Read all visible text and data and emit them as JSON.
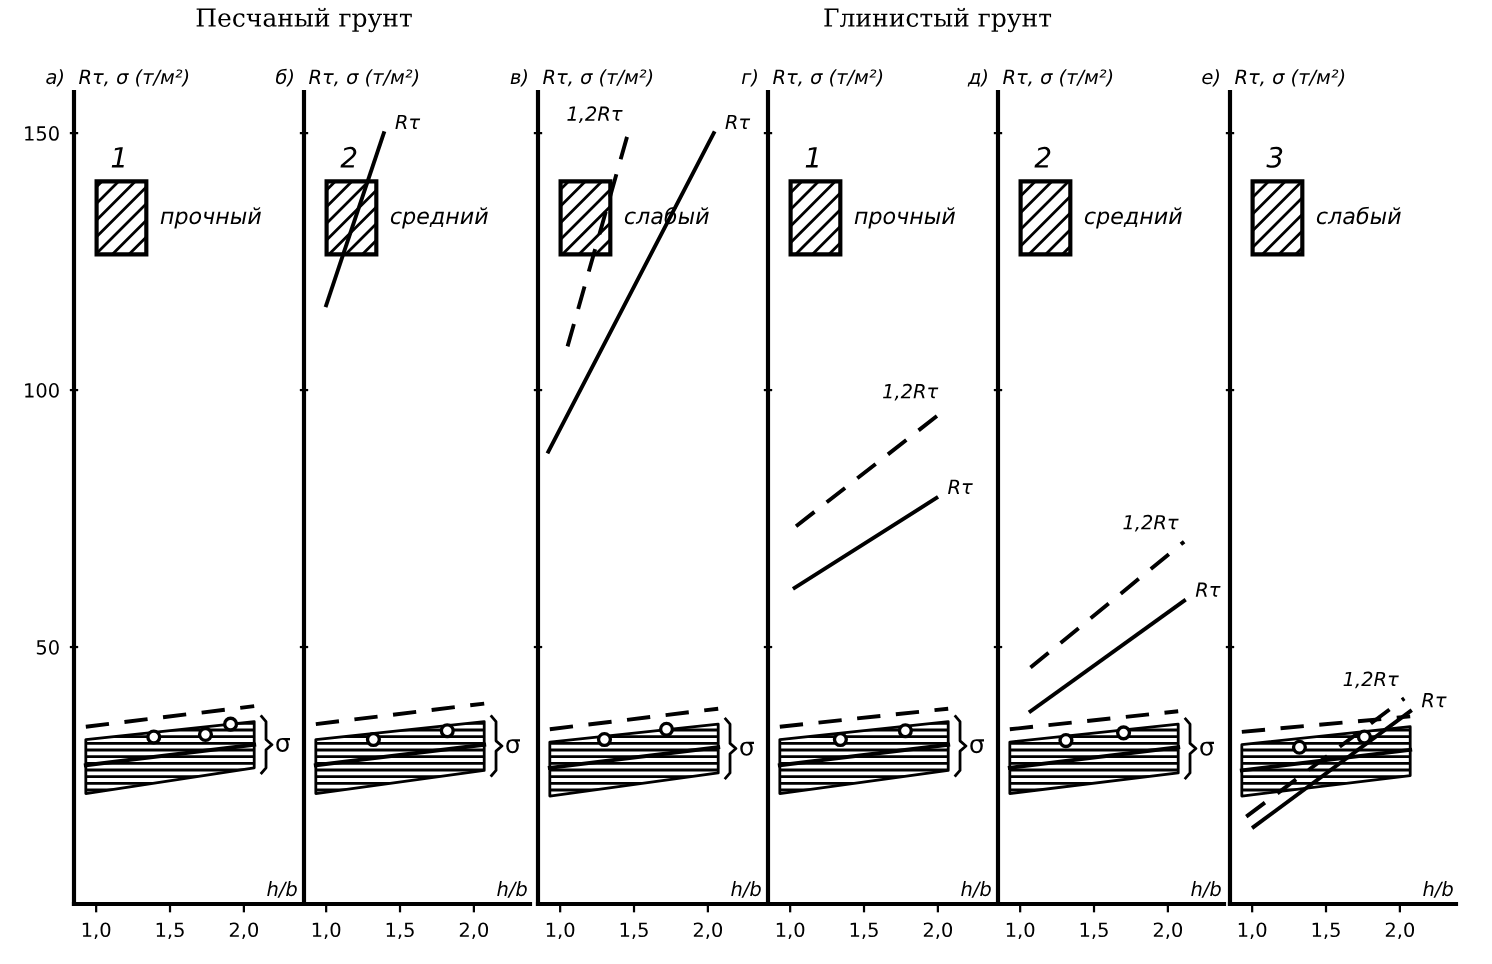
{
  "chart_data": [
    {
      "type": "line",
      "ylabel": "Rτ, σ (т/м²)",
      "xlabel": "h/b",
      "xlim": [
        0.85,
        2.38
      ],
      "ylim": [
        0,
        158
      ],
      "xticks": [
        {
          "value": 1.0,
          "label": "1,0"
        },
        {
          "value": 1.5,
          "label": "1,5"
        },
        {
          "value": 2.0,
          "label": "2,0"
        }
      ],
      "yticks": [
        50,
        100,
        150
      ],
      "annotations": [
        "а)",
        "1",
        "прочный"
      ],
      "series": [
        {
          "name": "σ",
          "type": "line",
          "color": "#000000",
          "x": [
            0.93,
            2.07
          ],
          "values": [
            27,
            31
          ],
          "lower": [
            21.5,
            26.5
          ],
          "upper": [
            32,
            35.5
          ]
        },
        {
          "type": "line",
          "line_style": "dashed",
          "color": "#000000",
          "x": [
            0.93,
            2.07
          ],
          "values": [
            34.5,
            38.5
          ]
        },
        {
          "type": "scatter",
          "marker": "circle",
          "color": "#000000",
          "x": [
            1.39,
            1.74,
            1.91
          ],
          "values": [
            32.5,
            33,
            35
          ]
        }
      ]
    },
    {
      "type": "line",
      "title": "Песчаный грунт",
      "ylabel": "Rτ, σ (т/м²)",
      "xlabel": "h/b",
      "xlim": [
        0.85,
        2.38
      ],
      "ylim": [
        0,
        158
      ],
      "tick_labels": "x",
      "xticks": [
        {
          "value": 1.0,
          "label": "1,0"
        },
        {
          "value": 1.5,
          "label": "1,5"
        },
        {
          "value": 2.0,
          "label": "2,0"
        }
      ],
      "yticks": [
        50,
        100,
        150
      ],
      "annotations": [
        "б)",
        "2",
        "средний"
      ],
      "series": [
        {
          "name": "σ",
          "type": "line",
          "color": "#000000",
          "x": [
            0.93,
            2.07
          ],
          "values": [
            27,
            31
          ],
          "lower": [
            21.5,
            26
          ],
          "upper": [
            32,
            35.5
          ]
        },
        {
          "type": "line",
          "line_style": "dashed",
          "color": "#000000",
          "x": [
            0.93,
            2.07
          ],
          "values": [
            35,
            39
          ]
        },
        {
          "type": "scatter",
          "marker": "circle",
          "color": "#000000",
          "x": [
            1.32,
            1.82
          ],
          "values": [
            32,
            33.7
          ]
        },
        {
          "name": "Rτ",
          "type": "line",
          "color": "#000000",
          "x": [
            1.0,
            1.39
          ],
          "values": [
            116.5,
            150
          ]
        }
      ]
    },
    {
      "type": "line",
      "ylabel": "Rτ, σ (т/м²)",
      "xlabel": "h/b",
      "xlim": [
        0.85,
        2.38
      ],
      "ylim": [
        0,
        158
      ],
      "tick_labels": "x",
      "xticks": [
        {
          "value": 1.0,
          "label": "1,0"
        },
        {
          "value": 1.5,
          "label": "1,5"
        },
        {
          "value": 2.0,
          "label": "2,0"
        }
      ],
      "yticks": [
        50,
        100,
        150
      ],
      "annotations": [
        "в)",
        "слабый"
      ],
      "series": [
        {
          "name": "σ",
          "type": "line",
          "color": "#000000",
          "x": [
            0.93,
            2.07
          ],
          "values": [
            26.5,
            30.5
          ],
          "lower": [
            21,
            25.5
          ],
          "upper": [
            31.5,
            35
          ]
        },
        {
          "type": "line",
          "line_style": "dashed",
          "color": "#000000",
          "x": [
            0.93,
            2.07
          ],
          "values": [
            34,
            38
          ]
        },
        {
          "type": "scatter",
          "marker": "circle",
          "color": "#000000",
          "x": [
            1.3,
            1.72
          ],
          "values": [
            32,
            34
          ]
        },
        {
          "name": "Rτ",
          "type": "line",
          "color": "#000000",
          "x": [
            0.92,
            2.04
          ],
          "values": [
            88,
            150
          ]
        },
        {
          "name": "1,2Rτ",
          "type": "line",
          "line_style": "dashed",
          "color": "#000000",
          "x": [
            1.05,
            1.46
          ],
          "values": [
            108.5,
            150
          ]
        }
      ]
    },
    {
      "type": "line",
      "title": "Глинистый грунт",
      "ylabel": "Rτ, σ (т/м²)",
      "xlabel": "h/b",
      "xlim": [
        0.85,
        2.38
      ],
      "ylim": [
        0,
        158
      ],
      "tick_labels": "x",
      "xticks": [
        {
          "value": 1.0,
          "label": "1,0"
        },
        {
          "value": 1.5,
          "label": "1,5"
        },
        {
          "value": 2.0,
          "label": "2,0"
        }
      ],
      "yticks": [
        50,
        100,
        150
      ],
      "annotations": [
        "г)",
        "1",
        "прочный"
      ],
      "series": [
        {
          "name": "σ",
          "type": "line",
          "color": "#000000",
          "x": [
            0.93,
            2.07
          ],
          "values": [
            27,
            31
          ],
          "lower": [
            21.5,
            26
          ],
          "upper": [
            32,
            35.5
          ]
        },
        {
          "type": "line",
          "line_style": "dashed",
          "color": "#000000",
          "x": [
            0.93,
            2.07
          ],
          "values": [
            34.5,
            38
          ]
        },
        {
          "type": "scatter",
          "marker": "circle",
          "color": "#000000",
          "x": [
            1.34,
            1.78
          ],
          "values": [
            32,
            33.7
          ]
        },
        {
          "name": "Rτ",
          "type": "line",
          "color": "#000000",
          "x": [
            1.03,
            1.99
          ],
          "values": [
            61.5,
            79
          ]
        },
        {
          "name": "1,2Rτ",
          "type": "line",
          "line_style": "dashed",
          "color": "#000000",
          "x": [
            1.04,
            2.04
          ],
          "values": [
            73.5,
            96
          ]
        }
      ]
    },
    {
      "type": "line",
      "ylabel": "Rτ, σ (т/м²)",
      "xlabel": "h/b",
      "xlim": [
        0.85,
        2.38
      ],
      "ylim": [
        0,
        158
      ],
      "tick_labels": "x",
      "xticks": [
        {
          "value": 1.0,
          "label": "1,0"
        },
        {
          "value": 1.5,
          "label": "1,5"
        },
        {
          "value": 2.0,
          "label": "2,0"
        }
      ],
      "yticks": [
        50,
        100,
        150
      ],
      "annotations": [
        "д)",
        "2",
        "средний"
      ],
      "series": [
        {
          "name": "σ",
          "type": "line",
          "color": "#000000",
          "x": [
            0.93,
            2.07
          ],
          "values": [
            26.5,
            30.5
          ],
          "lower": [
            21.5,
            25.5
          ],
          "upper": [
            31.5,
            35
          ]
        },
        {
          "type": "line",
          "line_style": "dashed",
          "color": "#000000",
          "x": [
            0.93,
            2.07
          ],
          "values": [
            34,
            37.5
          ]
        },
        {
          "type": "scatter",
          "marker": "circle",
          "color": "#000000",
          "x": [
            1.31,
            1.7
          ],
          "values": [
            31.8,
            33.3
          ]
        },
        {
          "name": "Rτ",
          "type": "line",
          "color": "#000000",
          "x": [
            1.07,
            2.11
          ],
          "values": [
            37.5,
            59
          ]
        },
        {
          "name": "1,2Rτ",
          "type": "line",
          "line_style": "dashed",
          "color": "#000000",
          "x": [
            1.07,
            2.11
          ],
          "values": [
            46,
            70.5
          ]
        }
      ]
    },
    {
      "type": "line",
      "ylabel": "Rτ, σ (т/м²)",
      "xlabel": "h/b",
      "xlim": [
        0.85,
        2.38
      ],
      "ylim": [
        0,
        158
      ],
      "tick_labels": "x",
      "xticks": [
        {
          "value": 1.0,
          "label": "1,0"
        },
        {
          "value": 1.5,
          "label": "1,5"
        },
        {
          "value": 2.0,
          "label": "2,0"
        }
      ],
      "yticks": [
        50,
        100,
        150
      ],
      "annotations": [
        "е)",
        "3",
        "слабый"
      ],
      "series": [
        {
          "type": "line",
          "color": "#000000",
          "x": [
            0.93,
            2.07
          ],
          "values": [
            26,
            30
          ],
          "lower": [
            21,
            25
          ],
          "upper": [
            31,
            34.5
          ]
        },
        {
          "type": "line",
          "line_style": "dashed",
          "color": "#000000",
          "x": [
            0.93,
            2.07
          ],
          "values": [
            33.5,
            36.5
          ]
        },
        {
          "type": "scatter",
          "marker": "circle",
          "color": "#000000",
          "x": [
            1.32,
            1.76
          ],
          "values": [
            30.5,
            32.5
          ]
        },
        {
          "name": "Rτ",
          "type": "line",
          "color": "#000000",
          "x": [
            1.01,
            2.07
          ],
          "values": [
            15,
            37.5
          ]
        },
        {
          "name": "1,2Rτ",
          "type": "line",
          "line_style": "dashed",
          "color": "#000000",
          "x": [
            0.96,
            2.03
          ],
          "values": [
            17,
            40
          ]
        }
      ]
    }
  ]
}
